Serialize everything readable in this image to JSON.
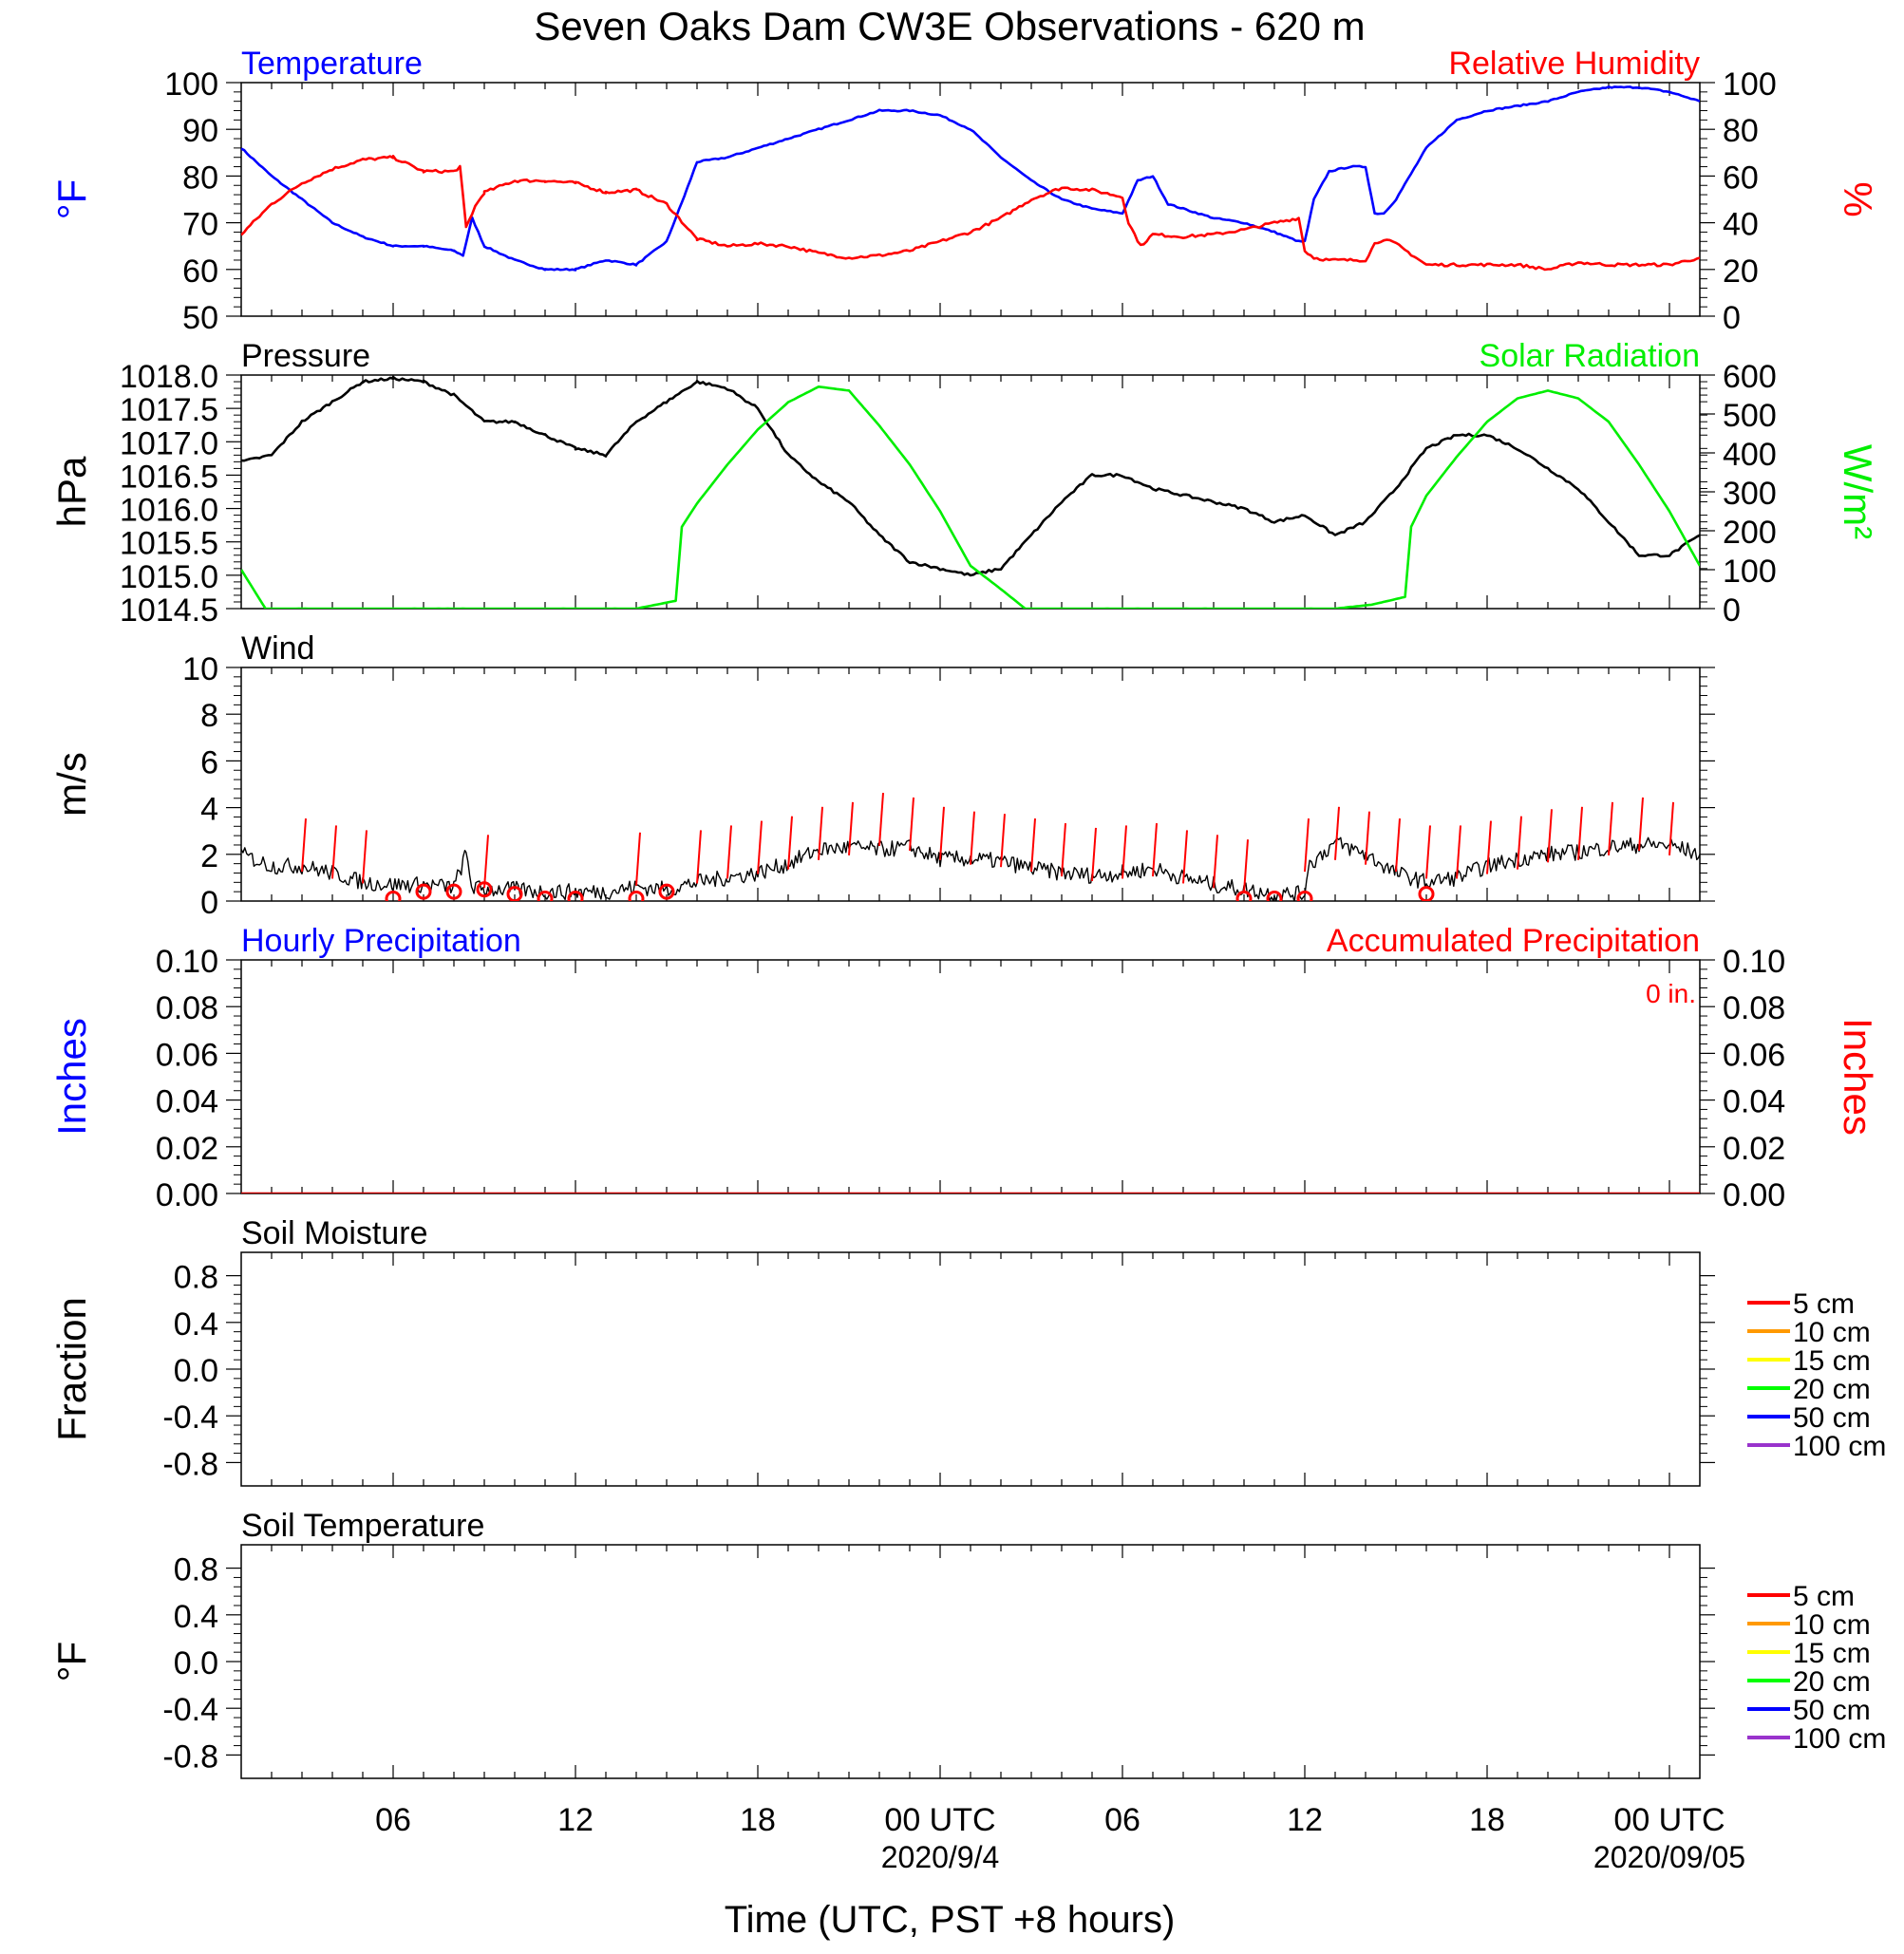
{
  "chart_data": {
    "type": "line",
    "title": "Seven Oaks Dam CW3E Observations - 620 m",
    "xlabel": "Time (UTC, PST +8 hours)",
    "x_unit": "hours since 2020-09-03 00 UTC",
    "x_range": [
      1,
      49
    ],
    "x_ticks": [
      {
        "x": 6,
        "label": "06",
        "sub": ""
      },
      {
        "x": 12,
        "label": "12",
        "sub": ""
      },
      {
        "x": 18,
        "label": "18",
        "sub": ""
      },
      {
        "x": 24,
        "label": "00 UTC",
        "sub": "2020/9/4"
      },
      {
        "x": 30,
        "label": "06",
        "sub": ""
      },
      {
        "x": 36,
        "label": "12",
        "sub": ""
      },
      {
        "x": 42,
        "label": "18",
        "sub": ""
      },
      {
        "x": 48,
        "label": "00 UTC",
        "sub": "2020/09/05"
      }
    ],
    "panels": [
      {
        "id": "temp-rh",
        "left_title": "Temperature",
        "left_title_color": "#0000ff",
        "right_title": "Relative Humidity",
        "right_title_color": "#ff0000",
        "left_ylabel": "°F",
        "left_ylabel_color": "#0000ff",
        "right_ylabel": "%",
        "right_ylabel_color": "#ff0000",
        "left_ylim": [
          50,
          100
        ],
        "left_ticks": [
          "50",
          "60",
          "70",
          "80",
          "90",
          "100"
        ],
        "right_ylim": [
          0,
          100
        ],
        "right_ticks": [
          "0",
          "20",
          "40",
          "60",
          "80",
          "100"
        ],
        "series": [
          {
            "name": "Temperature",
            "axis": "left",
            "color": "#0000ff",
            "x": [
              1,
              2,
              3,
              4,
              5,
              6,
              7,
              8,
              8.3,
              8.6,
              9,
              10,
              11,
              12,
              13,
              14,
              15,
              15.6,
              16,
              17,
              18,
              19,
              20,
              21,
              22,
              23,
              24,
              25,
              26,
              27,
              28,
              29,
              30,
              30.5,
              31,
              31.5,
              32,
              33,
              34,
              35,
              35.8,
              36,
              36.3,
              36.8,
              37.5,
              38,
              38.3,
              38.6,
              39,
              40,
              41,
              42,
              43,
              44,
              45,
              46,
              47,
              48,
              49
            ],
            "y": [
              86,
              80,
              75,
              70,
              67,
              65,
              65,
              64,
              63,
              71,
              65,
              62,
              60,
              60,
              62,
              61,
              66,
              76,
              83,
              84,
              86,
              88,
              90,
              92,
              94,
              94,
              93,
              90,
              84,
              79,
              75,
              73,
              72,
              79,
              80,
              74,
              73,
              71,
              70,
              68,
              66,
              66,
              75,
              81,
              82,
              82,
              72,
              72,
              75,
              86,
              92,
              94,
              95,
              96,
              98,
              99,
              99,
              98,
              96
            ]
          },
          {
            "name": "Relative Humidity",
            "axis": "right",
            "color": "#ff0000",
            "x": [
              1,
              2,
              3,
              4,
              5,
              6,
              7,
              8,
              8.2,
              8.4,
              8.7,
              9,
              10,
              11,
              12,
              13,
              14,
              15,
              16,
              17,
              18,
              19,
              20,
              21,
              22,
              23,
              24,
              25,
              26,
              27,
              28,
              29,
              30,
              30.2,
              30.6,
              31,
              32,
              33,
              34,
              35,
              35.8,
              36,
              36.3,
              36.8,
              37,
              38,
              38.3,
              38.6,
              39,
              40,
              41,
              42,
              43,
              44,
              45,
              46,
              47,
              48,
              49
            ],
            "y": [
              35,
              48,
              57,
              63,
              67,
              68,
              62,
              62,
              64,
              38,
              47,
              53,
              58,
              58,
              57,
              53,
              54,
              48,
              33,
              30,
              31,
              30,
              27,
              25,
              26,
              28,
              32,
              36,
              42,
              50,
              55,
              54,
              51,
              40,
              30,
              35,
              34,
              35,
              37,
              40,
              42,
              28,
              25,
              24,
              24,
              24,
              31,
              33,
              31,
              22,
              22,
              22,
              22,
              20,
              23,
              22,
              22,
              22,
              25
            ]
          }
        ]
      },
      {
        "id": "pressure-solar",
        "left_title": "Pressure",
        "left_title_color": "#000000",
        "right_title": "Solar Radiation",
        "right_title_color": "#00ee00",
        "left_ylabel": "hPa",
        "left_ylabel_color": "#000000",
        "right_ylabel": "W/m²",
        "right_ylabel_color": "#00ee00",
        "left_ylim": [
          1014.5,
          1018.0
        ],
        "left_ticks": [
          "1014.5",
          "1015.0",
          "1015.5",
          "1016.0",
          "1016.5",
          "1017.0",
          "1017.5",
          "1018.0"
        ],
        "right_ylim": [
          0,
          600
        ],
        "right_ticks": [
          "0",
          "100",
          "200",
          "300",
          "400",
          "500",
          "600"
        ],
        "series": [
          {
            "name": "Pressure",
            "axis": "left",
            "color": "#000000",
            "x": [
              1,
              2,
              3,
              4,
              5,
              6,
              7,
              8,
              9,
              10,
              11,
              12,
              13,
              14,
              15,
              16,
              17,
              18,
              19,
              20,
              21,
              22,
              23,
              24,
              25,
              26,
              27,
              28,
              29,
              30,
              31,
              32,
              33,
              34,
              35,
              36,
              37,
              38,
              39,
              40,
              41,
              42,
              43,
              44,
              45,
              46,
              47,
              48,
              49
            ],
            "y": [
              1016.7,
              1016.8,
              1017.3,
              1017.6,
              1017.9,
              1017.95,
              1017.9,
              1017.7,
              1017.3,
              1017.3,
              1017.1,
              1016.9,
              1016.8,
              1017.3,
              1017.6,
              1017.9,
              1017.8,
              1017.5,
              1016.8,
              1016.4,
              1016.1,
              1015.6,
              1015.2,
              1015.1,
              1015.0,
              1015.1,
              1015.6,
              1016.1,
              1016.5,
              1016.5,
              1016.3,
              1016.2,
              1016.1,
              1016.0,
              1015.8,
              1015.9,
              1015.6,
              1015.8,
              1016.3,
              1016.9,
              1017.1,
              1017.1,
              1016.9,
              1016.6,
              1016.3,
              1015.8,
              1015.3,
              1015.3,
              1015.6
            ]
          },
          {
            "name": "Solar Radiation",
            "axis": "right",
            "color": "#00ee00",
            "x": [
              1,
              1.8,
              14,
              15.3,
              15.5,
              16,
              17,
              18,
              19,
              20,
              21,
              22,
              23,
              24,
              25,
              26,
              26.8,
              35,
              37,
              38.2,
              39.3,
              39.5,
              40,
              41,
              42,
              43,
              44,
              45,
              46,
              47,
              48,
              49
            ],
            "y": [
              100,
              0,
              0,
              20,
              210,
              270,
              370,
              460,
              530,
              570,
              560,
              470,
              370,
              250,
              110,
              50,
              0,
              0,
              0,
              10,
              30,
              210,
              290,
              390,
              480,
              540,
              560,
              540,
              480,
              370,
              250,
              110
            ]
          }
        ]
      },
      {
        "id": "wind",
        "left_title": "Wind",
        "left_title_color": "#000000",
        "left_ylabel": "m/s",
        "left_ylabel_color": "#000000",
        "left_ylim": [
          0,
          10
        ],
        "left_ticks": [
          "0",
          "2",
          "4",
          "6",
          "8",
          "10"
        ],
        "series": [
          {
            "name": "Wind speed",
            "axis": "left",
            "color": "#000000",
            "x": [
              1,
              2,
              3,
              4,
              5,
              6,
              7,
              8,
              8.4,
              8.6,
              9,
              10,
              11,
              12,
              13,
              14,
              15,
              16,
              17,
              18,
              19,
              20,
              21,
              22,
              23,
              24,
              25,
              26,
              27,
              28,
              29,
              30,
              31,
              32,
              33,
              34,
              35,
              36,
              36.1,
              37,
              38,
              39,
              40,
              41,
              42,
              43,
              44,
              45,
              46,
              47,
              48,
              49
            ],
            "y": [
              2.0,
              1.5,
              1.5,
              1.2,
              0.8,
              0.7,
              0.7,
              0.6,
              2.0,
              0.6,
              0.5,
              0.5,
              0.4,
              0.4,
              0.4,
              0.6,
              0.5,
              0.8,
              1.0,
              1.2,
              1.6,
              2.2,
              2.3,
              2.2,
              2.3,
              1.8,
              1.8,
              1.7,
              1.4,
              1.2,
              1.1,
              1.2,
              1.4,
              1.0,
              0.7,
              0.5,
              0.3,
              0.3,
              1.5,
              2.5,
              2.0,
              1.2,
              0.8,
              1.0,
              1.5,
              1.8,
              2.0,
              2.1,
              2.3,
              2.4,
              2.4,
              2.0
            ],
            "noise": 0.35
          },
          {
            "name": "Wind barbs",
            "axis": "left",
            "color": "#ff0000",
            "type": "barbs",
            "x": [
              3,
              4,
              5,
              9,
              14,
              16,
              17,
              18,
              19,
              20,
              21,
              22,
              23,
              24,
              25,
              26,
              27,
              28,
              29,
              30,
              31,
              32,
              33,
              34,
              36,
              37,
              38,
              39,
              40,
              41,
              42,
              43,
              44,
              45,
              46,
              47,
              48
            ],
            "y": [
              1.5,
              1.2,
              1.0,
              0.8,
              0.9,
              1.0,
              1.2,
              1.4,
              1.6,
              2.0,
              2.2,
              2.6,
              2.4,
              2.0,
              1.8,
              1.7,
              1.5,
              1.3,
              1.1,
              1.2,
              1.3,
              1.0,
              0.8,
              0.6,
              1.5,
              2.0,
              1.8,
              1.5,
              1.2,
              1.2,
              1.4,
              1.6,
              1.9,
              2.0,
              2.2,
              2.4,
              2.2
            ],
            "length": 1.7
          },
          {
            "name": "Calm",
            "axis": "left",
            "color": "#ff0000",
            "type": "circles",
            "x": [
              6,
              7,
              8,
              9,
              10,
              11,
              12,
              14,
              15,
              34,
              35,
              36,
              40
            ],
            "y": [
              0.1,
              0.4,
              0.4,
              0.5,
              0.3,
              0.1,
              0.1,
              0.1,
              0.4,
              0.1,
              0.1,
              0.1,
              0.3
            ]
          }
        ]
      },
      {
        "id": "precip",
        "left_title": "Hourly Precipitation",
        "left_title_color": "#0000ff",
        "right_title": "Accumulated Precipitation",
        "right_title_color": "#ff0000",
        "right_note": "0 in.",
        "left_ylabel": "Inches",
        "left_ylabel_color": "#0000ff",
        "right_ylabel": "Inches",
        "right_ylabel_color": "#ff0000",
        "left_ylim": [
          0,
          0.1
        ],
        "left_ticks": [
          "0.00",
          "0.02",
          "0.04",
          "0.06",
          "0.08",
          "0.10"
        ],
        "right_ylim": [
          0,
          0.1
        ],
        "right_ticks": [
          "0.00",
          "0.02",
          "0.04",
          "0.06",
          "0.08",
          "0.10"
        ],
        "series": [
          {
            "name": "Accumulated Precipitation",
            "axis": "left",
            "color": "#cc0000",
            "x": [
              1,
              49
            ],
            "y": [
              0,
              0
            ]
          }
        ]
      },
      {
        "id": "soil-moisture",
        "left_title": "Soil Moisture",
        "left_title_color": "#000000",
        "left_ylabel": "Fraction",
        "left_ylabel_color": "#000000",
        "left_ylim": [
          -1.0,
          1.0
        ],
        "left_ticks": [
          "-0.8",
          "-0.4",
          "0.0",
          "0.4",
          "0.8"
        ],
        "tick_values": [
          -0.8,
          -0.4,
          0.0,
          0.4,
          0.8
        ],
        "legend": [
          {
            "label": "5 cm",
            "color": "#ff0000"
          },
          {
            "label": "10 cm",
            "color": "#ff9900"
          },
          {
            "label": "15 cm",
            "color": "#ffff00"
          },
          {
            "label": "20 cm",
            "color": "#00ff00"
          },
          {
            "label": "50 cm",
            "color": "#0000ff"
          },
          {
            "label": "100 cm",
            "color": "#9933cc"
          }
        ],
        "series": []
      },
      {
        "id": "soil-temp",
        "left_title": "Soil Temperature",
        "left_title_color": "#000000",
        "left_ylabel": "°F",
        "left_ylabel_color": "#000000",
        "left_ylim": [
          -1.0,
          1.0
        ],
        "left_ticks": [
          "-0.8",
          "-0.4",
          "0.0",
          "0.4",
          "0.8"
        ],
        "tick_values": [
          -0.8,
          -0.4,
          0.0,
          0.4,
          0.8
        ],
        "legend": [
          {
            "label": "5 cm",
            "color": "#ff0000"
          },
          {
            "label": "10 cm",
            "color": "#ff9900"
          },
          {
            "label": "15 cm",
            "color": "#ffff00"
          },
          {
            "label": "20 cm",
            "color": "#00ff00"
          },
          {
            "label": "50 cm",
            "color": "#0000ff"
          },
          {
            "label": "100 cm",
            "color": "#9933cc"
          }
        ],
        "series": []
      }
    ]
  }
}
